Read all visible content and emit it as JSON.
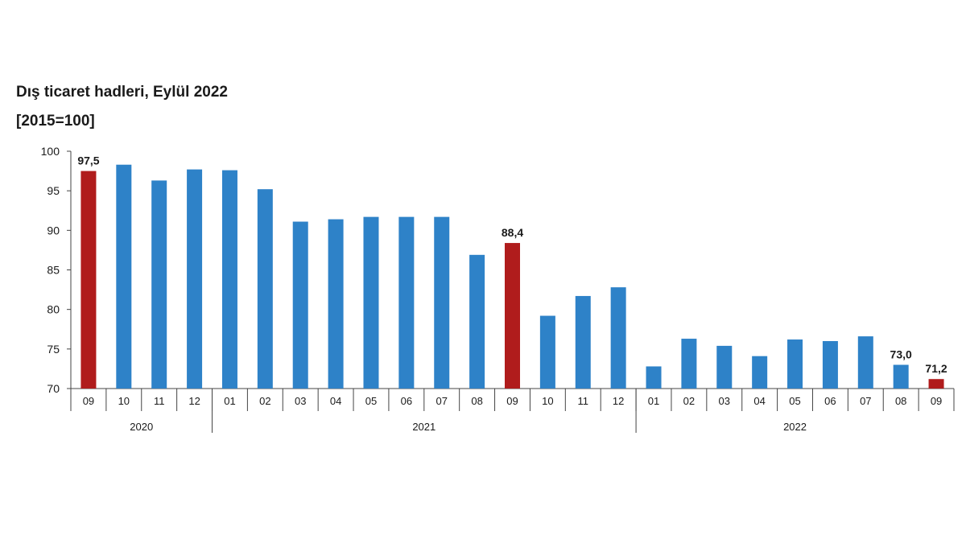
{
  "title": "Dış ticaret hadleri, Eylül 2022",
  "subtitle": "[2015=100]",
  "colors": {
    "bar": "#2e82c8",
    "highlight": "#b01c1c",
    "axis": "#444444",
    "text": "#1a1a1a"
  },
  "chart_data": {
    "type": "bar",
    "title": "Dış ticaret hadleri, Eylül 2022",
    "subtitle": "[2015=100]",
    "xlabel": "",
    "ylabel": "",
    "ylim": [
      70,
      100
    ],
    "yticks": [
      70,
      75,
      80,
      85,
      90,
      95,
      100
    ],
    "grid": false,
    "categories": [
      "09",
      "10",
      "11",
      "12",
      "01",
      "02",
      "03",
      "04",
      "05",
      "06",
      "07",
      "08",
      "09",
      "10",
      "11",
      "12",
      "01",
      "02",
      "03",
      "04",
      "05",
      "06",
      "07",
      "08",
      "09"
    ],
    "years": [
      {
        "label": "2020",
        "span": 4
      },
      {
        "label": "2021",
        "span": 12
      },
      {
        "label": "2022",
        "span": 9
      }
    ],
    "values": [
      97.5,
      98.3,
      96.3,
      97.7,
      97.6,
      95.2,
      91.1,
      91.4,
      91.7,
      91.7,
      91.7,
      86.9,
      88.4,
      79.2,
      81.7,
      82.8,
      72.8,
      76.3,
      75.4,
      74.1,
      76.2,
      76.0,
      76.6,
      73.0,
      71.2
    ],
    "highlighted": [
      0,
      12,
      24
    ],
    "data_labels": [
      {
        "index": 0,
        "text": "97,5"
      },
      {
        "index": 12,
        "text": "88,4"
      },
      {
        "index": 23,
        "text": "73,0"
      },
      {
        "index": 24,
        "text": "71,2"
      }
    ]
  }
}
